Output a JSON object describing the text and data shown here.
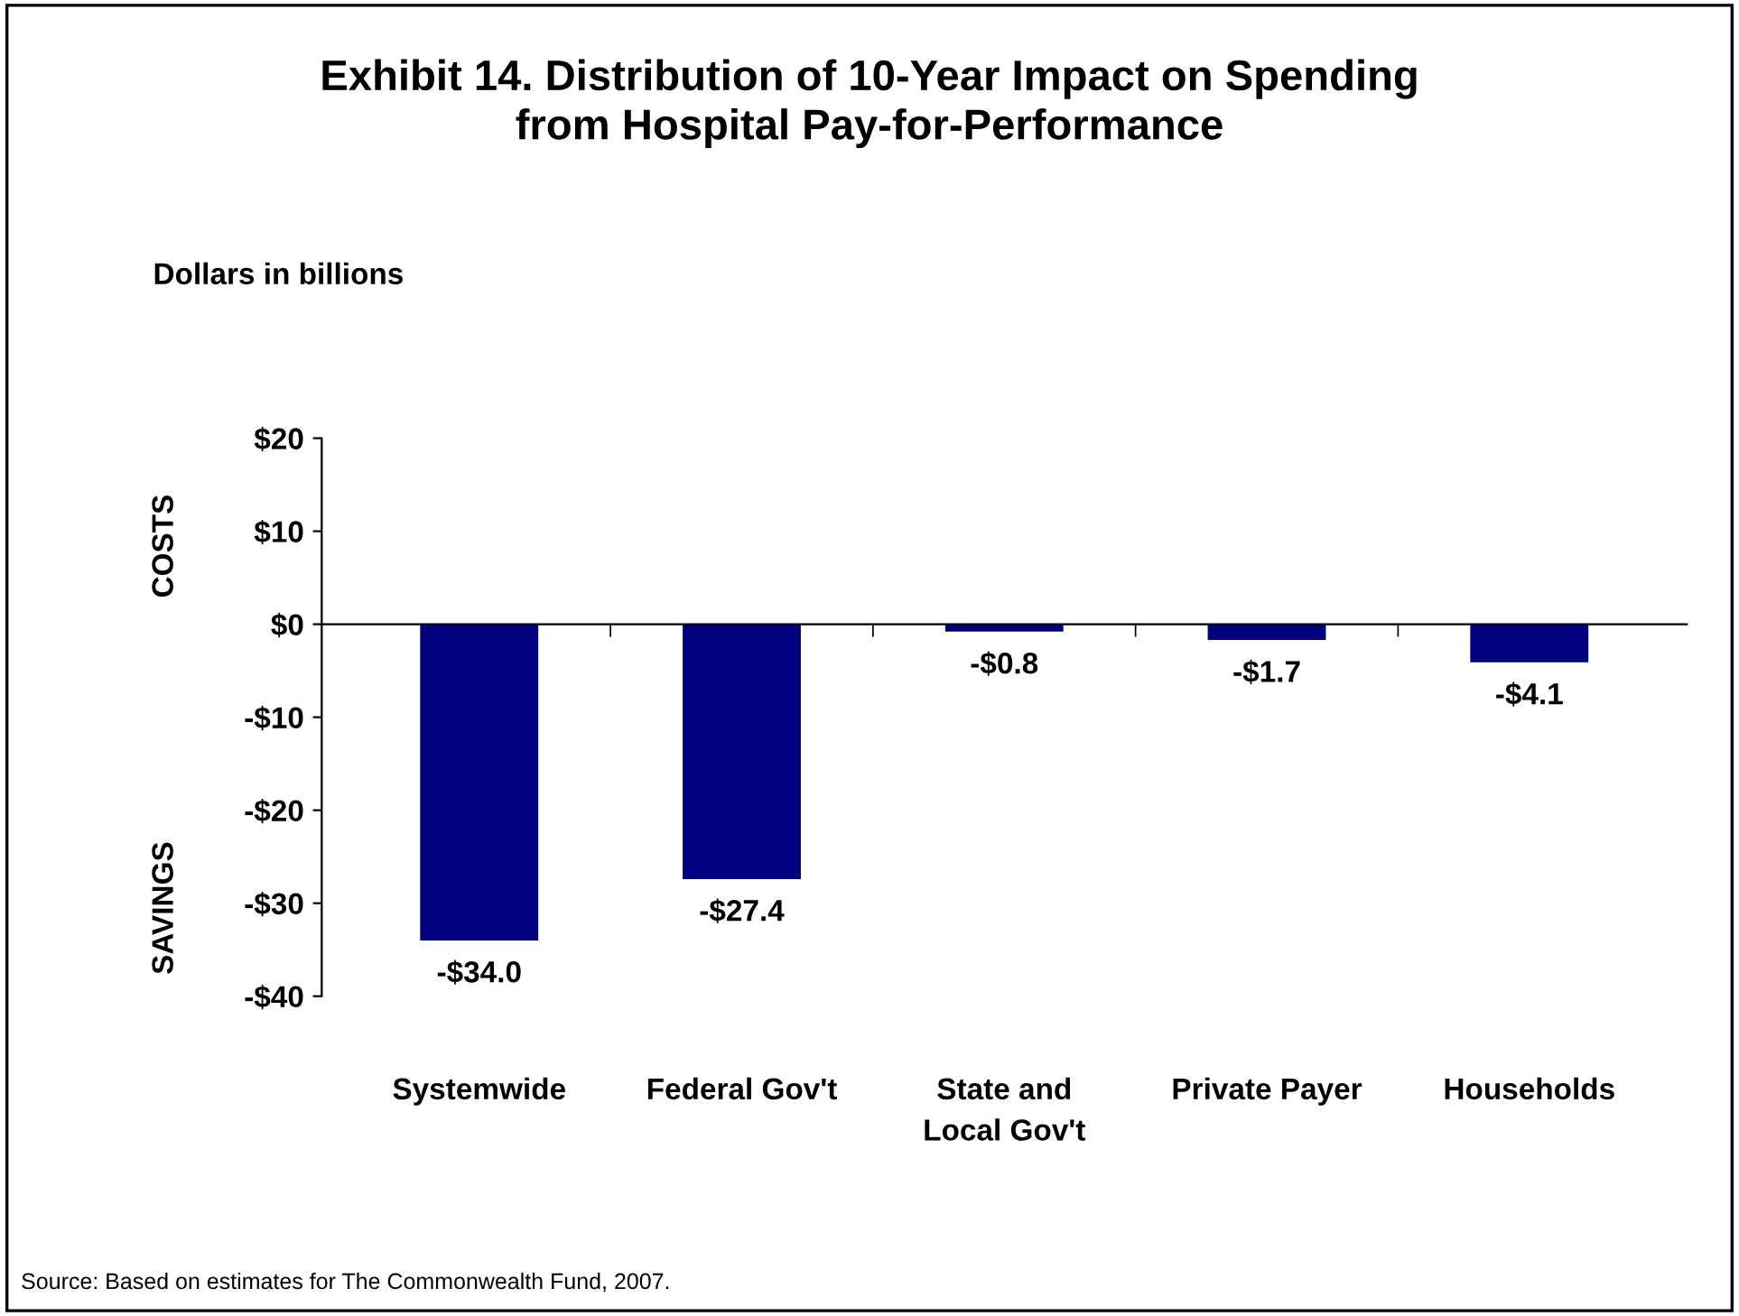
{
  "chart_data": {
    "type": "bar",
    "title": "Exhibit 14. Distribution of 10-Year Impact on Spending\nfrom Hospital Pay-for-Performance",
    "ylabel": "Dollars in billions",
    "categories": [
      "Systemwide",
      "Federal Gov't",
      "State and\nLocal Gov't",
      "Private Payer",
      "Households"
    ],
    "values": [
      -34.0,
      -27.4,
      -0.8,
      -1.7,
      -4.1
    ],
    "value_labels": [
      "-$34.0",
      "-$27.4",
      "-$0.8",
      "-$1.7",
      "-$4.1"
    ],
    "color": "#000080",
    "ylim": [
      -40,
      20
    ],
    "yticks": [
      {
        "value": -40,
        "label": "-$40"
      },
      {
        "value": -30,
        "label": "-$30"
      },
      {
        "value": -20,
        "label": "-$20"
      },
      {
        "value": -10,
        "label": "-$10"
      },
      {
        "value": 0,
        "label": "$0"
      },
      {
        "value": 10,
        "label": "$10"
      },
      {
        "value": 20,
        "label": "$20"
      }
    ],
    "annotations": [
      "COSTS",
      "SAVINGS",
      "Source: Based on estimates for The Commonwealth Fund, 2007."
    ],
    "legend": false
  }
}
